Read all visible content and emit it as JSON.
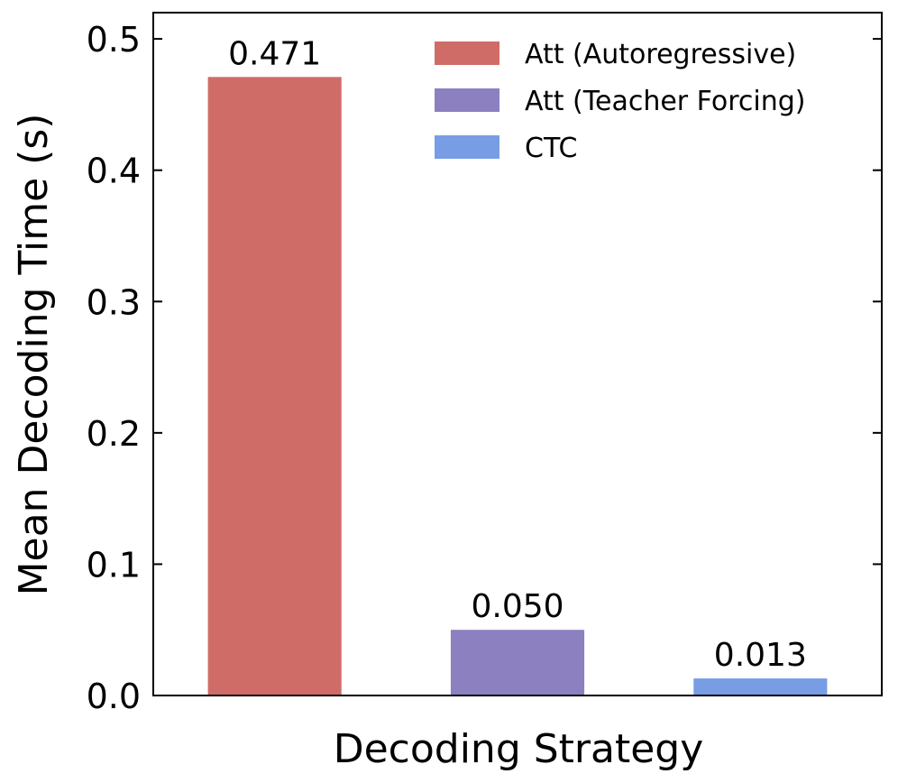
{
  "chart_data": {
    "type": "bar",
    "title": "",
    "xlabel": "Decoding Strategy",
    "ylabel": "Mean Decoding Time (s)",
    "ylim": [
      0,
      0.52
    ],
    "yticks": [
      "0.0",
      "0.1",
      "0.2",
      "0.3",
      "0.4",
      "0.5"
    ],
    "ytick_values": [
      0.0,
      0.1,
      0.2,
      0.3,
      0.4,
      0.5
    ],
    "grid": false,
    "legend_position": "top-right",
    "series": [
      {
        "name": "Att (Autoregressive)",
        "value": 0.471,
        "label": "0.471",
        "color": "#d06c68"
      },
      {
        "name": "Att (Teacher Forcing)",
        "value": 0.05,
        "label": "0.050",
        "color": "#8c80c0"
      },
      {
        "name": "CTC",
        "value": 0.013,
        "label": "0.013",
        "color": "#789de4"
      }
    ]
  }
}
